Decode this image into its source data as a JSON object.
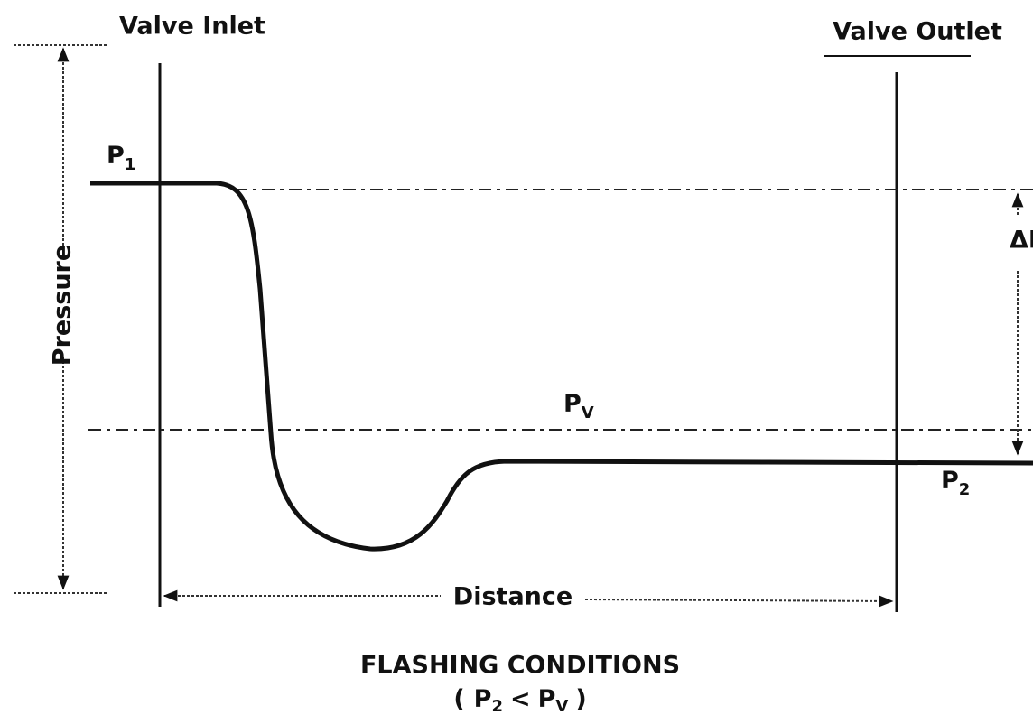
{
  "labels": {
    "valve_inlet": "Valve Inlet",
    "valve_outlet": "Valve Outlet",
    "p1": {
      "base": "P",
      "sub": "1"
    },
    "pressure": "Pressure",
    "distance": "Distance",
    "delta_p": "ΔP",
    "pv": {
      "base": "P",
      "sub": "V"
    },
    "p2": {
      "base": "P",
      "sub": "2"
    }
  },
  "caption": {
    "title": "FLASHING CONDITIONS",
    "condition": {
      "open": "(",
      "left": "P",
      "left_sub": "2",
      "op": "<",
      "right": "P",
      "right_sub": "V",
      "close": ")"
    }
  }
}
